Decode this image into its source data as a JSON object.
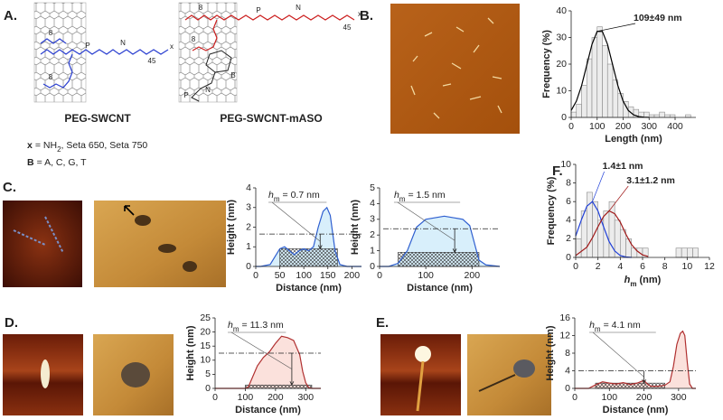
{
  "panels": [
    "A.",
    "B.",
    "C.",
    "D.",
    "E.",
    "F."
  ],
  "structures": [
    {
      "name": "PEG-SWCNT",
      "color": "#2a3fd0",
      "labels": [
        "8",
        "8",
        "P",
        "N",
        "45",
        "x"
      ]
    },
    {
      "name": "PEG-SWCNT-mASO",
      "color": "#cc2020",
      "labels": [
        "8",
        "8",
        "P",
        "N",
        "45",
        "x",
        "B",
        "N",
        "P"
      ]
    }
  ],
  "legend_x": {
    "symbol": "x",
    "text": "= NH",
    "subscript": "2",
    "rest": ", Seta 650, Seta 750"
  },
  "legend_b": {
    "symbol": "B",
    "text": "= A, C, G, T"
  },
  "chart_data": [
    {
      "type": "histogram",
      "xlabel": "Length (nm)",
      "ylabel": "Frequency (%)",
      "xlim": [
        0,
        480
      ],
      "xticks": [
        0,
        100,
        200,
        300,
        400
      ],
      "ylim": [
        0,
        40
      ],
      "yticks": [
        0,
        10,
        20,
        30,
        40
      ],
      "bins": [
        0,
        20,
        40,
        60,
        80,
        100,
        120,
        140,
        160,
        180,
        200,
        220,
        240,
        260,
        280,
        300,
        320,
        340,
        360,
        380,
        400,
        420,
        440,
        460
      ],
      "values": [
        2,
        5,
        12,
        22,
        30,
        34,
        27,
        20,
        14,
        9,
        6,
        4,
        3,
        2,
        2,
        1,
        1,
        2,
        1,
        1,
        0,
        0,
        1
      ],
      "fits": [
        {
          "color": "#000000",
          "label": "109±49 nm",
          "x": [
            0,
            20,
            40,
            60,
            80,
            100,
            120,
            140,
            160,
            180,
            200,
            220,
            240,
            260,
            280,
            300
          ],
          "values": [
            2.6,
            6.1,
            11.9,
            19.6,
            27.4,
            32.3,
            32.3,
            27.4,
            19.6,
            11.9,
            6.1,
            2.6,
            1.0,
            0.3,
            0.1,
            0
          ]
        }
      ]
    },
    {
      "type": "profile",
      "xlabel": "Distance (nm)",
      "ylabel": "Height (nm)",
      "color": "#2f5fd0",
      "fill_color": "#d8effb",
      "annotation": {
        "symbol": "h",
        "subscript": "m",
        "text": "= 0.7 nm"
      },
      "xlim": [
        0,
        220
      ],
      "xticks": [
        0,
        50,
        100,
        150,
        200
      ],
      "ylim": [
        0,
        4
      ],
      "yticks": [
        0,
        1,
        2,
        3,
        4
      ],
      "x": [
        0,
        10,
        30,
        50,
        60,
        70,
        80,
        90,
        100,
        110,
        120,
        130,
        140,
        148,
        155,
        165,
        175,
        190,
        220
      ],
      "values": [
        0,
        0,
        0.1,
        0.9,
        1.0,
        0.8,
        0.6,
        0.8,
        0.9,
        0.8,
        1.0,
        2.0,
        2.8,
        3.0,
        2.6,
        0.8,
        0.1,
        0,
        0
      ],
      "ref_level": 1.65,
      "hatch": [
        50,
        170,
        0.9
      ]
    },
    {
      "type": "profile",
      "xlabel": "Distance (nm)",
      "ylabel": "Height (nm)",
      "color": "#2f5fd0",
      "fill_color": "#d8effb",
      "annotation": {
        "symbol": "h",
        "subscript": "m",
        "text": "= 1.5 nm"
      },
      "xlim": [
        0,
        260
      ],
      "xticks": [
        0,
        100,
        200
      ],
      "ylim": [
        0,
        5
      ],
      "yticks": [
        0,
        1,
        2,
        3,
        4,
        5
      ],
      "x": [
        0,
        20,
        40,
        60,
        80,
        100,
        120,
        140,
        160,
        180,
        195,
        205,
        215,
        230,
        260
      ],
      "values": [
        0,
        0,
        0.2,
        1.0,
        2.5,
        3.0,
        3.1,
        3.2,
        3.1,
        3.0,
        2.6,
        1.5,
        0.4,
        0.1,
        0
      ],
      "ref_level": 2.4,
      "hatch": [
        40,
        215,
        0.9
      ]
    },
    {
      "type": "histogram",
      "xlabel": {
        "symbol": "h",
        "subscript": "m",
        "text": "(nm)"
      },
      "ylabel": "Frequency (%)",
      "xlim": [
        0,
        12
      ],
      "xticks": [
        0,
        2,
        4,
        6,
        8,
        10,
        12
      ],
      "ylim": [
        0,
        10
      ],
      "yticks": [
        0,
        2,
        4,
        6,
        8,
        10
      ],
      "bins": [
        0,
        0.5,
        1,
        1.5,
        2,
        2.5,
        3,
        3.5,
        4,
        4.5,
        5,
        5.5,
        6,
        6.5,
        7,
        7.5,
        8,
        8.5,
        9,
        9.5,
        10,
        10.5,
        11,
        11.5,
        12
      ],
      "values": [
        2,
        5,
        7,
        6,
        4,
        5,
        6,
        4,
        3,
        2,
        1,
        1,
        1,
        0,
        0,
        0,
        0,
        0,
        1,
        1,
        1,
        1,
        0,
        0
      ],
      "fits": [
        {
          "color": "#1f3fd8",
          "label": "1.4±1 nm",
          "x": [
            0,
            0.5,
            1,
            1.5,
            2,
            2.5,
            3,
            3.5,
            4,
            4.5,
            5
          ],
          "values": [
            2.3,
            4.0,
            5.5,
            6.0,
            5.0,
            3.3,
            1.7,
            0.7,
            0.2,
            0.05,
            0
          ]
        },
        {
          "color": "#a01818",
          "label": "3.1±1.2 nm",
          "x": [
            0,
            1,
            1.5,
            2,
            2.5,
            3,
            3.5,
            4,
            4.5,
            5,
            5.5,
            6,
            6.5
          ],
          "values": [
            0.2,
            1.1,
            2.1,
            3.3,
            4.4,
            5.0,
            4.7,
            3.8,
            2.5,
            1.4,
            0.7,
            0.27,
            0.1
          ]
        }
      ]
    },
    {
      "type": "profile",
      "xlabel": "Distance (nm)",
      "ylabel": "Height (nm)",
      "color": "#b03030",
      "fill_color": "#fbe1dc",
      "annotation": {
        "symbol": "h",
        "subscript": "m",
        "text": "= 11.3 nm"
      },
      "xlim": [
        0,
        350
      ],
      "xticks": [
        0,
        100,
        200,
        300
      ],
      "ylim": [
        0,
        25
      ],
      "yticks": [
        0,
        5,
        10,
        15,
        20,
        25
      ],
      "x": [
        0,
        100,
        110,
        120,
        140,
        160,
        180,
        200,
        220,
        240,
        260,
        280,
        290,
        300,
        310,
        320,
        350
      ],
      "values": [
        0,
        0,
        0.5,
        3,
        8,
        11,
        13,
        16,
        18.5,
        18,
        17,
        12,
        6,
        2,
        0.3,
        0,
        0
      ],
      "ref_level": 12.5,
      "hatch": [
        100,
        320,
        1.2
      ]
    },
    {
      "type": "profile",
      "xlabel": "Distance (nm)",
      "ylabel": "Height (nm)",
      "color": "#b03030",
      "fill_color": "#fbe1dc",
      "annotation": {
        "symbol": "h",
        "subscript": "m",
        "text": "= 4.1 nm"
      },
      "xlim": [
        0,
        350
      ],
      "xticks": [
        0,
        100,
        200,
        300
      ],
      "ylim": [
        0,
        16
      ],
      "yticks": [
        0,
        4,
        8,
        12,
        16
      ],
      "x": [
        0,
        40,
        60,
        80,
        100,
        120,
        140,
        160,
        180,
        200,
        210,
        220,
        240,
        260,
        275,
        285,
        295,
        305,
        312,
        318,
        325,
        332,
        340,
        350
      ],
      "values": [
        0,
        0,
        0.8,
        1.5,
        1.2,
        1.0,
        1.3,
        0.9,
        1.2,
        1.8,
        1.0,
        0.5,
        0.5,
        0.7,
        1.5,
        5,
        10,
        12.5,
        13,
        12,
        6,
        1,
        0,
        0
      ],
      "ref_level": 4,
      "hatch": [
        60,
        260,
        1.2
      ]
    }
  ]
}
